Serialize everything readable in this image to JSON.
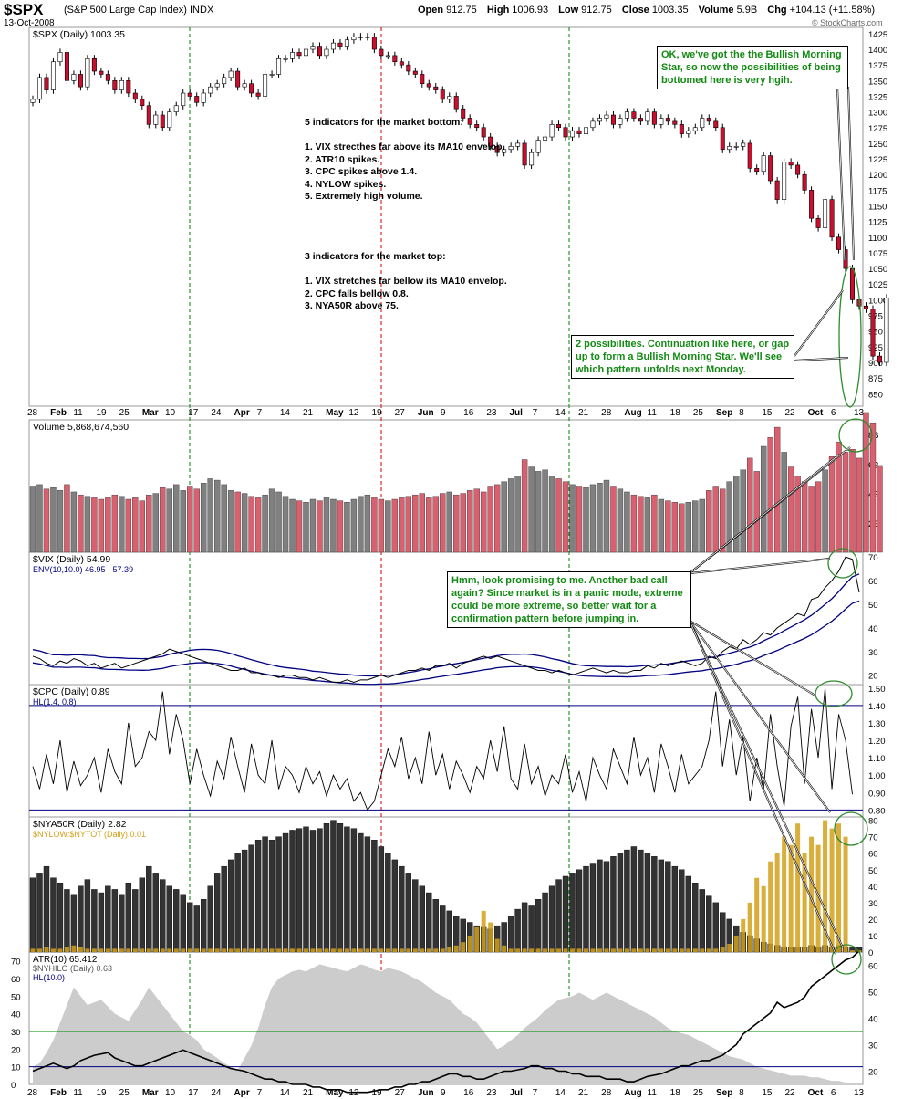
{
  "header": {
    "symbol": "$SPX",
    "name": "(S&P 500 Large Cap Index) INDX",
    "date": "13-Oct-2008",
    "open_label": "Open",
    "open": "912.75",
    "high_label": "High",
    "high": "1006.93",
    "low_label": "Low",
    "low": "912.75",
    "close_label": "Close",
    "close": "1003.35",
    "volume_label": "Volume",
    "volume": "5.9B",
    "chg_label": "Chg",
    "chg": "+104.13 (+11.58%)",
    "brand": "© StockCharts.com"
  },
  "colors": {
    "up": "#ffffff",
    "down": "#c8102e",
    "vol_up": "#808080",
    "vol_down": "#d9606e",
    "env": "#000080",
    "nylow": "#d4a017",
    "area": "#cccccc",
    "vline_green": "#008000",
    "vline_red": "#d00000",
    "note_green": "#138a13"
  },
  "x_axis_labels": [
    "28",
    "Feb",
    "11",
    "19",
    "25",
    "Mar",
    "10",
    "17",
    "24",
    "Apr",
    "7",
    "14",
    "21",
    "May",
    "12",
    "19",
    "27",
    "Jun",
    "9",
    "16",
    "23",
    "Jul",
    "7",
    "14",
    "21",
    "28",
    "Aug",
    "11",
    "18",
    "25",
    "Sep",
    "8",
    "15",
    "22",
    "Oct",
    "6",
    "13"
  ],
  "notes": {
    "bottom": "5 indicators for the market bottom:\n\n1. VIX strecthes far above its MA10 envelop.\n2. ATR10 spikes.\n3. CPC spikes above 1.4.\n4. NYLOW spikes.\n5. Extremely high volume.",
    "top": "3 indicators for the market top:\n\n1. VIX stretches far bellow its MA10 envelop.\n2. CPC falls bellow 0.8.\n3. NYA50R above 75."
  },
  "callouts": {
    "morning_star": "OK, we've got the the Bullish Morning Star, so now the possibilities of being bottomed here is very hgih.",
    "possibilities": "2 possibilities. Continuation like here, or gap up to form a Bullish Morning Star. We'll see which pattern unfolds next Monday.",
    "vix_call": "Hmm, look promising to me. Another bad call again? Since market is in a panic mode, extreme could be more extreme, so better wait for a confirmation pattern before jumping in."
  },
  "chart_data": [
    {
      "type": "candlestick",
      "title": "$SPX (Daily) 1003.35",
      "y_ticks": [
        1425,
        1400,
        1375,
        1350,
        1325,
        1300,
        1275,
        1250,
        1225,
        1200,
        1175,
        1150,
        1125,
        1100,
        1075,
        1050,
        1025,
        1000,
        975,
        950,
        925,
        900,
        875,
        850
      ],
      "ylim": [
        830,
        1435
      ],
      "close": [
        1320,
        1355,
        1335,
        1380,
        1395,
        1350,
        1360,
        1340,
        1385,
        1365,
        1360,
        1350,
        1335,
        1350,
        1330,
        1320,
        1310,
        1280,
        1295,
        1275,
        1300,
        1310,
        1330,
        1325,
        1315,
        1330,
        1340,
        1345,
        1355,
        1365,
        1340,
        1345,
        1330,
        1325,
        1360,
        1360,
        1385,
        1385,
        1395,
        1390,
        1400,
        1405,
        1390,
        1400,
        1410,
        1405,
        1415,
        1420,
        1420,
        1420,
        1400,
        1390,
        1390,
        1380,
        1375,
        1365,
        1360,
        1345,
        1340,
        1335,
        1320,
        1325,
        1305,
        1290,
        1280,
        1275,
        1260,
        1245,
        1235,
        1240,
        1245,
        1250,
        1215,
        1235,
        1255,
        1260,
        1280,
        1275,
        1260,
        1270,
        1265,
        1275,
        1285,
        1290,
        1295,
        1280,
        1290,
        1300,
        1290,
        1285,
        1300,
        1280,
        1290,
        1285,
        1280,
        1265,
        1270,
        1275,
        1290,
        1285,
        1275,
        1240,
        1245,
        1245,
        1250,
        1210,
        1205,
        1230,
        1190,
        1160,
        1220,
        1215,
        1200,
        1175,
        1130,
        1115,
        1160,
        1100,
        1080,
        1050,
        1000,
        990,
        985,
        910,
        900,
        1003
      ],
      "ohlc_note": "Closes estimated per trading day, 28-Jan-2008 to 13-Oct-2008"
    },
    {
      "type": "bar",
      "title": "Volume 5,868,674,560",
      "y_ticks_label": [
        "8B",
        "6B",
        "4B",
        "2B"
      ],
      "y_ticks": [
        8,
        6,
        4,
        2
      ],
      "ylim": [
        0,
        9
      ],
      "values_billion": [
        4.5,
        4.6,
        4.3,
        4.4,
        4.2,
        4.6,
        4.1,
        3.9,
        3.8,
        3.7,
        3.6,
        3.7,
        3.9,
        3.8,
        3.6,
        3.7,
        3.5,
        3.9,
        4.0,
        4.4,
        4.3,
        4.6,
        4.2,
        4.5,
        4.3,
        4.7,
        5.0,
        4.9,
        4.6,
        4.2,
        4.1,
        4.0,
        3.8,
        3.7,
        3.9,
        4.3,
        4.1,
        3.8,
        3.6,
        3.5,
        3.4,
        3.6,
        3.5,
        3.7,
        3.6,
        3.5,
        3.4,
        3.6,
        3.8,
        3.9,
        3.7,
        3.6,
        3.5,
        3.6,
        3.7,
        3.8,
        3.9,
        4.0,
        3.7,
        3.8,
        4.0,
        4.1,
        3.9,
        4.0,
        4.2,
        4.3,
        4.1,
        4.5,
        4.6,
        4.8,
        5.0,
        5.2,
        6.3,
        5.8,
        5.5,
        5.6,
        5.2,
        5.0,
        4.8,
        4.6,
        4.5,
        4.4,
        4.6,
        4.7,
        4.9,
        4.5,
        4.3,
        4.1,
        3.9,
        3.8,
        3.7,
        3.9,
        3.6,
        3.5,
        3.4,
        3.3,
        3.4,
        3.5,
        3.6,
        4.2,
        4.5,
        4.3,
        4.8,
        5.2,
        5.6,
        6.4,
        5.5,
        7.2,
        7.8,
        8.5,
        6.8,
        5.8,
        5.2,
        4.8,
        4.5,
        4.8,
        5.6,
        6.5,
        7.5,
        6.8,
        7.0,
        6.4,
        9.5,
        8.8,
        5.9
      ]
    },
    {
      "type": "line",
      "title": "$VIX (Daily) 54.99",
      "legend": "ENV(10,10.0) 46.95 - 57.39",
      "y_ticks": [
        70,
        60,
        50,
        40,
        30,
        20
      ],
      "ylim": [
        16,
        72
      ],
      "values": [
        28,
        27,
        25,
        24,
        26,
        25,
        27,
        26,
        24,
        25,
        23,
        24,
        25,
        23,
        24,
        25,
        26,
        27,
        28,
        29,
        31,
        30,
        29,
        28,
        27,
        26,
        25,
        24,
        23,
        22,
        22,
        23,
        21,
        21,
        20,
        20,
        19,
        20,
        20,
        19,
        19,
        18,
        19,
        18,
        17,
        17,
        18,
        17,
        18,
        18,
        19,
        20,
        19,
        20,
        21,
        22,
        22,
        23,
        22,
        24,
        24,
        25,
        23,
        25,
        26,
        27,
        28,
        27,
        28,
        27,
        26,
        25,
        24,
        23,
        22,
        22,
        21,
        22,
        21,
        20,
        21,
        22,
        23,
        22,
        21,
        22,
        21,
        21,
        22,
        22,
        24,
        23,
        25,
        24,
        25,
        26,
        25,
        24,
        25,
        28,
        27,
        30,
        32,
        31,
        35,
        33,
        35,
        38,
        37,
        40,
        42,
        44,
        46,
        45,
        52,
        53,
        57,
        60,
        64,
        70,
        69,
        54.99
      ]
    },
    {
      "type": "line",
      "title": "$CPC (Daily) 0.89",
      "legend": "HL(1.4, 0.8)",
      "y_ticks": [
        1.5,
        1.4,
        1.3,
        1.2,
        1.1,
        1.0,
        0.9,
        0.8
      ],
      "ylim": [
        0.76,
        1.52
      ],
      "hlines": [
        1.4,
        0.8
      ],
      "values": [
        1.05,
        0.92,
        1.12,
        0.95,
        1.2,
        0.9,
        1.08,
        0.94,
        1.0,
        1.1,
        0.9,
        1.15,
        1.02,
        0.95,
        1.3,
        1.05,
        1.1,
        1.25,
        1.2,
        1.48,
        1.12,
        1.35,
        1.2,
        0.95,
        1.15,
        1.0,
        0.88,
        1.08,
        0.98,
        1.22,
        1.05,
        0.9,
        1.18,
        1.0,
        0.95,
        1.2,
        0.92,
        1.05,
        1.0,
        0.9,
        1.05,
        0.95,
        1.02,
        0.88,
        1.0,
        0.92,
        0.98,
        0.85,
        0.9,
        0.8,
        0.85,
        1.0,
        1.15,
        1.05,
        1.22,
        0.98,
        1.1,
        0.95,
        1.25,
        1.0,
        1.12,
        0.92,
        1.08,
        1.0,
        0.9,
        1.05,
        0.98,
        1.2,
        1.02,
        1.28,
        0.98,
        0.92,
        1.18,
        0.95,
        1.05,
        0.88,
        1.0,
        0.95,
        1.12,
        0.9,
        1.02,
        0.85,
        1.1,
        1.0,
        0.92,
        1.15,
        1.05,
        0.95,
        1.22,
        1.0,
        1.1,
        0.9,
        1.18,
        1.05,
        0.9,
        1.12,
        0.95,
        1.0,
        1.05,
        1.2,
        1.48,
        1.05,
        1.32,
        1.0,
        1.22,
        0.85,
        1.1,
        0.92,
        1.35,
        1.05,
        0.82,
        1.28,
        1.45,
        0.95,
        1.38,
        1.1,
        1.5,
        0.92,
        1.35,
        1.2,
        0.89
      ]
    },
    {
      "type": "bar",
      "title": "$NYA50R (Daily) 2.82",
      "legend2": "$NYLOW:$NYTOT (Daily) 0.01",
      "y_ticks": [
        80,
        70,
        60,
        50,
        40,
        30,
        20,
        10,
        0
      ],
      "ylim": [
        0,
        82
      ],
      "values": [
        45,
        48,
        52,
        45,
        42,
        38,
        35,
        40,
        44,
        38,
        36,
        40,
        38,
        35,
        42,
        38,
        45,
        52,
        48,
        44,
        40,
        38,
        35,
        30,
        28,
        32,
        40,
        48,
        52,
        56,
        60,
        62,
        65,
        68,
        70,
        68,
        70,
        72,
        74,
        75,
        76,
        74,
        75,
        78,
        80,
        78,
        76,
        75,
        72,
        70,
        68,
        64,
        60,
        56,
        52,
        48,
        44,
        40,
        36,
        32,
        28,
        25,
        22,
        20,
        18,
        16,
        15,
        14,
        16,
        18,
        22,
        26,
        30,
        28,
        32,
        36,
        40,
        44,
        46,
        48,
        50,
        52,
        54,
        56,
        55,
        58,
        60,
        62,
        64,
        62,
        60,
        58,
        56,
        55,
        52,
        50,
        46,
        42,
        38,
        34,
        30,
        24,
        20,
        16,
        12,
        10,
        8,
        6,
        5,
        4,
        3,
        3,
        3,
        3,
        4,
        3,
        4,
        3,
        4,
        3,
        3,
        2.82
      ],
      "nylow_values": [
        2,
        2,
        3,
        2,
        2,
        3,
        4,
        3,
        2,
        2,
        2,
        2,
        2,
        2,
        2,
        2,
        2,
        2,
        2,
        2,
        2,
        2,
        2,
        2,
        2,
        2,
        2,
        2,
        2,
        2,
        2,
        2,
        2,
        2,
        2,
        2,
        2,
        2,
        2,
        2,
        2,
        2,
        2,
        2,
        2,
        2,
        2,
        2,
        2,
        2,
        2,
        2,
        2,
        2,
        2,
        2,
        2,
        2,
        2,
        2,
        2,
        3,
        4,
        6,
        10,
        15,
        25,
        18,
        8,
        4,
        2,
        2,
        2,
        2,
        2,
        2,
        2,
        2,
        2,
        2,
        2,
        2,
        2,
        2,
        2,
        2,
        2,
        2,
        2,
        2,
        2,
        2,
        2,
        2,
        2,
        2,
        2,
        2,
        2,
        2,
        2,
        3,
        5,
        10,
        20,
        30,
        45,
        40,
        55,
        60,
        70,
        65,
        78,
        60,
        70,
        65,
        80,
        75,
        78,
        70,
        1,
        1
      ]
    },
    {
      "type": "area",
      "title": "ATR(10) 65.412",
      "legend2": "$NYHILO (Daily) 0.63",
      "legend3": "HL(10.0)",
      "y_ticks_left": [
        70,
        60,
        50,
        40,
        30,
        20,
        10,
        0
      ],
      "y_ticks_right": [
        60,
        50,
        40,
        30,
        20
      ],
      "hlines_atr": [
        30,
        10
      ],
      "atr_values": [
        20,
        21,
        22,
        23,
        22,
        21,
        22,
        24,
        25,
        26,
        27,
        25,
        24,
        23,
        22,
        22,
        23,
        24,
        25,
        26,
        27,
        28,
        27,
        26,
        25,
        24,
        23,
        22,
        21,
        20,
        19,
        18,
        17,
        17,
        16,
        16,
        15,
        15,
        15,
        14,
        14,
        13,
        13,
        13,
        12,
        12,
        12,
        12,
        13,
        13,
        14,
        14,
        15,
        15,
        16,
        16,
        17,
        18,
        19,
        19,
        18,
        18,
        17,
        17,
        18,
        19,
        20,
        20,
        21,
        22,
        22,
        21,
        21,
        20,
        20,
        19,
        19,
        18,
        18,
        18,
        17,
        17,
        17,
        16,
        16,
        17,
        18,
        19,
        20,
        21,
        22,
        22,
        23,
        24,
        24,
        25,
        26,
        28,
        30,
        34,
        36,
        38,
        40,
        42,
        46,
        44,
        46,
        48,
        52,
        54,
        56,
        58,
        60,
        62,
        63,
        65.412
      ],
      "nyhilo_values": [
        10,
        12,
        18,
        25,
        35,
        45,
        55,
        50,
        45,
        48,
        44,
        40,
        38,
        36,
        42,
        48,
        55,
        50,
        45,
        40,
        35,
        30,
        28,
        25,
        20,
        15,
        12,
        10,
        8,
        15,
        22,
        32,
        45,
        55,
        60,
        62,
        64,
        65,
        64,
        66,
        68,
        66,
        65,
        64,
        66,
        68,
        67,
        65,
        64,
        66,
        65,
        64,
        62,
        60,
        58,
        55,
        52,
        48,
        44,
        40,
        38,
        35,
        30,
        25,
        20,
        22,
        25,
        28,
        32,
        35,
        38,
        42,
        45,
        48,
        50,
        52,
        50,
        48,
        50,
        52,
        50,
        48,
        46,
        44,
        42,
        40,
        38,
        35,
        32,
        30,
        28,
        26,
        24,
        22,
        20,
        18,
        16,
        15,
        14,
        12,
        10,
        9,
        8,
        7,
        6,
        5,
        5,
        4,
        4,
        3,
        2,
        2,
        1,
        1,
        0.63
      ]
    }
  ]
}
